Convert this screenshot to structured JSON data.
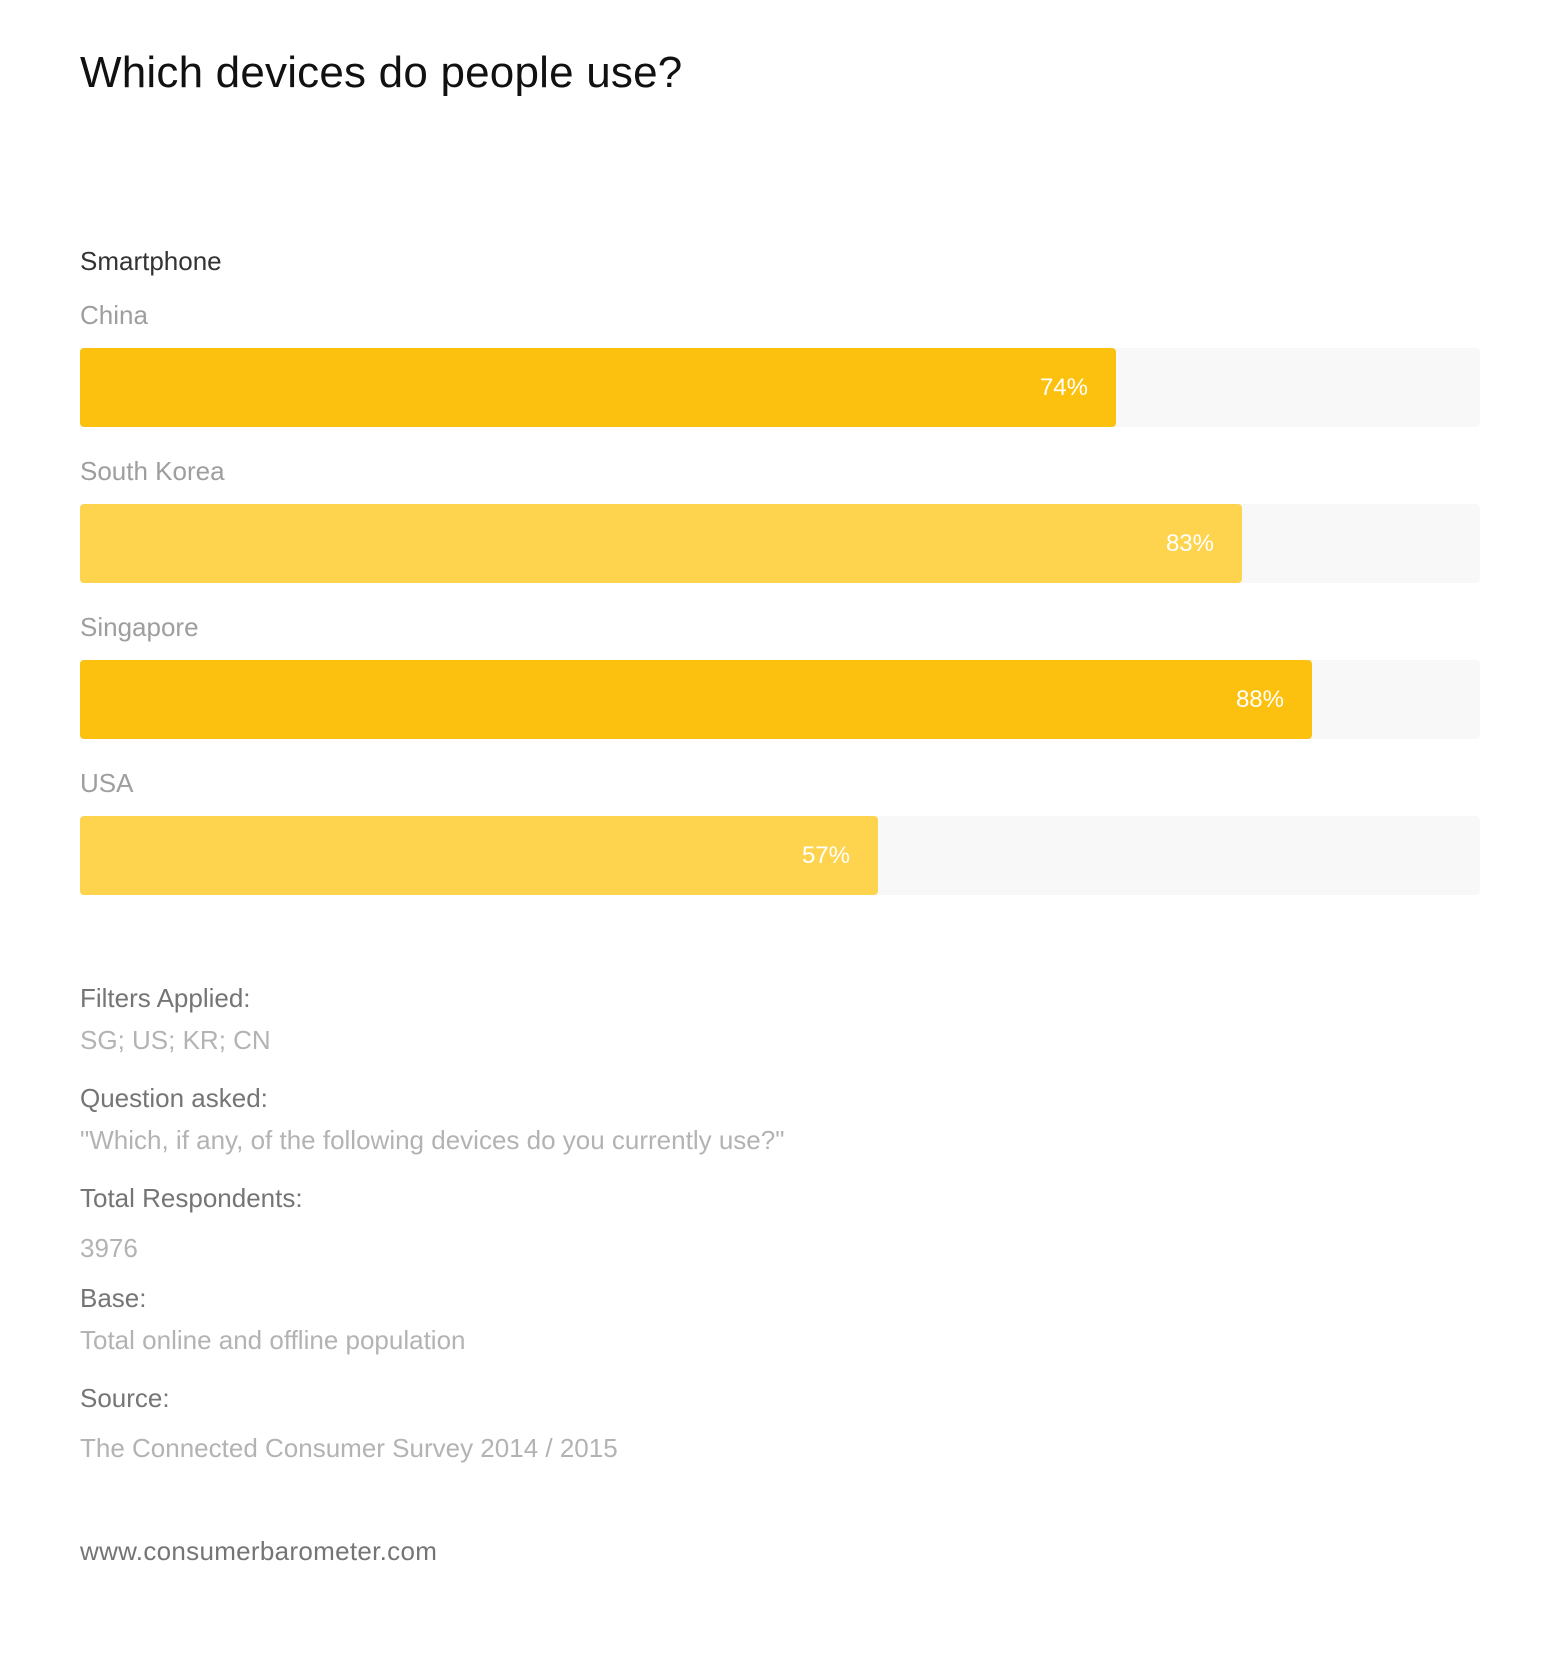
{
  "title": "Which devices do people use?",
  "chart_data": {
    "type": "bar",
    "orientation": "horizontal",
    "title": "Which devices do people use?",
    "series_label": "Smartphone",
    "categories": [
      "China",
      "South Korea",
      "Singapore",
      "USA"
    ],
    "values": [
      74,
      83,
      88,
      57
    ],
    "value_labels": [
      "74%",
      "83%",
      "88%",
      "57%"
    ],
    "xlim": [
      0,
      100
    ],
    "bar_colors": [
      "#fcc10f",
      "#fed44f",
      "#fcc10f",
      "#fed44f"
    ],
    "track_color": "#f8f8f8"
  },
  "meta": {
    "filters_label": "Filters Applied:",
    "filters_value": "SG; US; KR; CN",
    "question_label": "Question asked:",
    "question_value": "\"Which, if any, of the following devices do you currently use?\"",
    "respondents_label": "Total Respondents:",
    "respondents_value": "3976",
    "base_label": "Base:",
    "base_value": "Total online and offline population",
    "source_label": "Source:",
    "source_value": "The Connected Consumer Survey 2014 / 2015"
  },
  "footer": {
    "site": "www.consumerbarometer.com"
  }
}
